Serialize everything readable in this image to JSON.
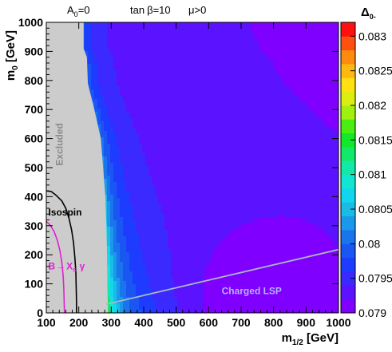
{
  "chart_data": {
    "type": "heatmap",
    "header": {
      "a0": "A",
      "a0_sub": "0",
      "a0_val": "=0",
      "tanb_pre": "tan",
      "tanb_greek": "β",
      "tanb_val": "=10",
      "mu_greek": "μ",
      "mu_val": ">0"
    },
    "xlabel": {
      "main": "m",
      "sub": "1/2",
      "unit": " [GeV]"
    },
    "ylabel": {
      "main": "m",
      "sub": "0",
      "unit": " [GeV]"
    },
    "zlabel": {
      "main": "Δ",
      "sub": "0-"
    },
    "xlim": [
      100,
      1000
    ],
    "ylim": [
      0,
      1000
    ],
    "zlim": [
      0.079,
      0.0832
    ],
    "x_ticks": [
      100,
      200,
      300,
      400,
      500,
      600,
      700,
      800,
      900,
      1000
    ],
    "y_ticks": [
      0,
      100,
      200,
      300,
      400,
      500,
      600,
      700,
      800,
      900,
      1000
    ],
    "z_ticks": [
      "0.079",
      "0.0795",
      "0.08",
      "0.0805",
      "0.081",
      "0.0815",
      "0.082",
      "0.0825",
      "0.083"
    ],
    "z_values": [
      0.079,
      0.0795,
      0.08,
      0.0805,
      0.081,
      0.0815,
      0.082,
      0.0825,
      0.083
    ],
    "color_levels": [
      "#8000ff",
      "#5a12ff",
      "#3a2aff",
      "#1e3cff",
      "#1a56f2",
      "#1a74ec",
      "#1a98ec",
      "#1abce6",
      "#12d6ee",
      "#12e6d2",
      "#12e8a8",
      "#12e86a",
      "#12e82a",
      "#4aee10",
      "#a0f010",
      "#dcee10",
      "#ffe010",
      "#ffb810",
      "#ff8a10",
      "#ff5010",
      "#ff1010"
    ],
    "excluded_color": "#cccccc",
    "excluded_boundary": [
      [
        100,
        1000
      ],
      [
        215,
        1000
      ],
      [
        215,
        910
      ],
      [
        225,
        880
      ],
      [
        228,
        790
      ],
      [
        248,
        700
      ],
      [
        268,
        600
      ],
      [
        275,
        500
      ],
      [
        282,
        400
      ],
      [
        285,
        300
      ],
      [
        287,
        200
      ],
      [
        288,
        100
      ],
      [
        290,
        0
      ],
      [
        100,
        0
      ]
    ],
    "annotations": {
      "excluded": "Excluded",
      "isospin": "Isospin",
      "bsg_b": "B",
      "bsg_arrow": "→",
      "bsg_x": "X",
      "bsg_s": "s",
      "bsg_gamma": "γ",
      "charged_lsp": "Charged LSP"
    },
    "isospin_curve": [
      [
        100,
        420
      ],
      [
        115,
        418
      ],
      [
        130,
        405
      ],
      [
        148,
        385
      ],
      [
        160,
        360
      ],
      [
        170,
        325
      ],
      [
        178,
        285
      ],
      [
        184,
        240
      ],
      [
        188,
        190
      ],
      [
        191,
        140
      ],
      [
        192,
        90
      ],
      [
        193,
        40
      ],
      [
        193,
        0
      ]
    ],
    "bsg_curve": [
      [
        100,
        315
      ],
      [
        112,
        302
      ],
      [
        124,
        280
      ],
      [
        134,
        250
      ],
      [
        142,
        214
      ],
      [
        148,
        172
      ],
      [
        152,
        126
      ],
      [
        154,
        80
      ],
      [
        155,
        36
      ],
      [
        156,
        0
      ]
    ],
    "lsp_line": [
      [
        285,
        30
      ],
      [
        1000,
        218
      ]
    ],
    "isospin_color": "#000000",
    "bsg_color": "#e020d0",
    "lsp_line_color": "#a8b8c8",
    "lsp_label_color": "#b8b0ff"
  }
}
